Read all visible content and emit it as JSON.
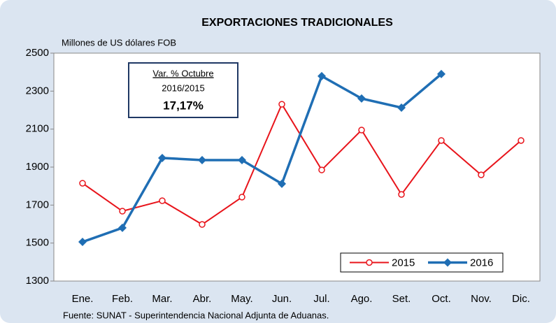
{
  "chart_data": {
    "type": "line",
    "title": "EXPORTACIONES TRADICIONALES",
    "y_label": "Millones de US dólares FOB",
    "source": "Fuente: SUNAT - Superintendencia Nacional Adjunta de Aduanas.",
    "annotation": {
      "line1": "Var. % Octubre",
      "line2": "2016/2015",
      "value": "17,17%"
    },
    "categories": [
      "Ene.",
      "Feb.",
      "Mar.",
      "Abr.",
      "May.",
      "Jun.",
      "Jul.",
      "Ago.",
      "Set.",
      "Oct.",
      "Nov.",
      "Dic."
    ],
    "series": [
      {
        "name": "2015",
        "color": "#e8141b",
        "values": [
          1815,
          1668,
          1723,
          1598,
          1742,
          2231,
          1885,
          2095,
          1756,
          2040,
          1859,
          2040
        ]
      },
      {
        "name": "2016",
        "color": "#1f6eb4",
        "values": [
          1506,
          1580,
          1948,
          1937,
          1937,
          1812,
          2379,
          2261,
          2213,
          2390,
          null,
          null
        ]
      }
    ],
    "ylim": [
      1300,
      2500
    ],
    "yticks": [
      1300,
      1500,
      1700,
      1900,
      2100,
      2300,
      2500
    ],
    "grid": false,
    "legend": "lower right"
  }
}
